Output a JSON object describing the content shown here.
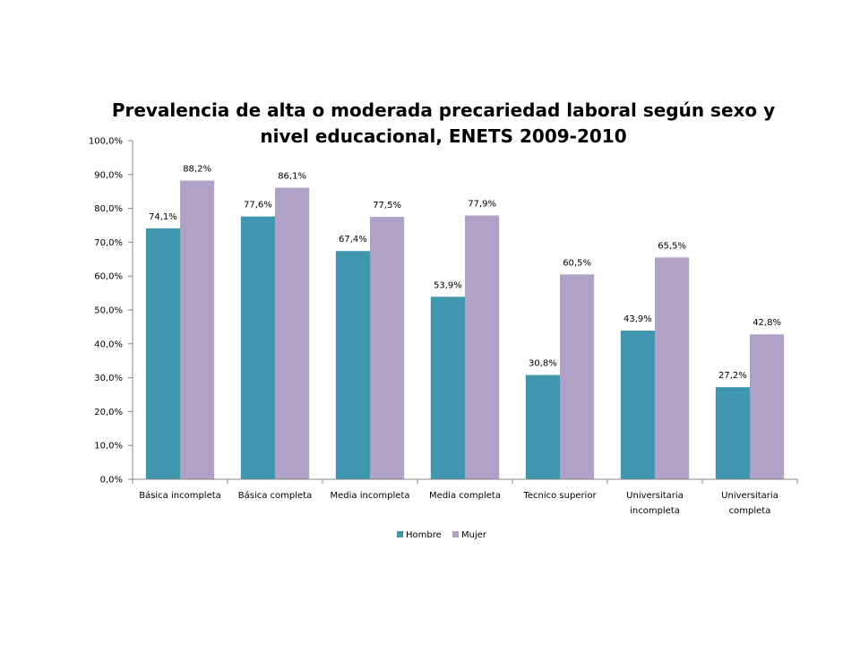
{
  "chart_data": {
    "type": "bar",
    "title_line1": "Prevalencia de alta o moderada precariedad laboral según sexo y",
    "title_line2": "nivel educacional, ENETS 2009-2010",
    "categories": [
      [
        "Básica incompleta"
      ],
      [
        "Básica completa"
      ],
      [
        "Media incompleta"
      ],
      [
        "Media completa"
      ],
      [
        "Tecnico superior"
      ],
      [
        "Universitaria",
        "incompleta"
      ],
      [
        "Universitaria",
        "completa"
      ]
    ],
    "series": [
      {
        "name": "Hombre",
        "color": "#4196af",
        "values": [
          74.1,
          77.6,
          67.4,
          53.9,
          30.8,
          43.9,
          27.2
        ],
        "labels": [
          "74,1%",
          "77,6%",
          "67,4%",
          "53,9%",
          "30,8%",
          "43,9%",
          "27,2%"
        ]
      },
      {
        "name": "Mujer",
        "color": "#b0a2c7",
        "values": [
          88.2,
          86.1,
          77.5,
          77.9,
          60.5,
          65.5,
          42.8
        ],
        "labels": [
          "88,2%",
          "86,1%",
          "77,5%",
          "77,9%",
          "60,5%",
          "65,5%",
          "42,8%"
        ]
      }
    ],
    "ylim": [
      0,
      100
    ],
    "y_ticks": [
      0,
      10,
      20,
      30,
      40,
      50,
      60,
      70,
      80,
      90,
      100
    ],
    "y_tick_labels": [
      "0,0%",
      "10,0%",
      "20,0%",
      "30,0%",
      "40,0%",
      "50,0%",
      "60,0%",
      "70,0%",
      "80,0%",
      "90,0%",
      "100,0%"
    ],
    "grid": false,
    "legend_position": "bottom"
  }
}
